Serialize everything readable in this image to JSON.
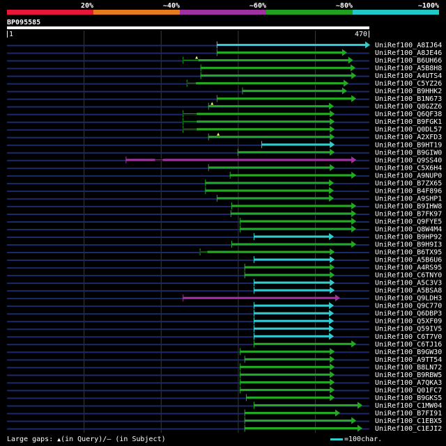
{
  "identity_scale": {
    "ticks": [
      "20%",
      "~40%",
      "~60%",
      "~80%",
      "~100%"
    ],
    "colors": [
      "#e8173a",
      "#e87a1e",
      "#a032a0",
      "#20a020",
      "#20c8c8"
    ]
  },
  "query": {
    "name": "BP095585",
    "start_label": "1",
    "end_label": "470",
    "length": 470
  },
  "hits": [
    {
      "name": "UniRef100_A8IJ64",
      "start": 272,
      "end": 471,
      "color": "#33cccc",
      "gaps": []
    },
    {
      "name": "UniRef100_A8JE46",
      "start": 272,
      "end": 441,
      "color": "#22aa22",
      "gaps": []
    },
    {
      "name": "UniRef100_B6UH66",
      "start": 228,
      "end": 449,
      "color": "#22aa22",
      "gaps": [
        [
          228,
          248,
          "line"
        ],
        [
          246,
          0,
          "tri"
        ]
      ]
    },
    {
      "name": "UniRef100_A5B8H8",
      "start": 251,
      "end": 452,
      "color": "#22aa22",
      "gaps": []
    },
    {
      "name": "UniRef100_A4UTS4",
      "start": 251,
      "end": 453,
      "color": "#22aa22",
      "gaps": []
    },
    {
      "name": "UniRef100_C5YZ26",
      "start": 233,
      "end": 443,
      "color": "#22aa22",
      "gaps": [
        [
          233,
          245,
          "line"
        ]
      ]
    },
    {
      "name": "UniRef100_B9HHK2",
      "start": 305,
      "end": 441,
      "color": "#22aa22",
      "gaps": []
    },
    {
      "name": "UniRef100_B1N673",
      "start": 272,
      "end": 453,
      "color": "#22aa22",
      "gaps": []
    },
    {
      "name": "UniRef100_Q8GZZ6",
      "start": 261,
      "end": 424,
      "color": "#22aa22",
      "gaps": [
        [
          266,
          0,
          "tri"
        ]
      ]
    },
    {
      "name": "UniRef100_Q6QF38",
      "start": 228,
      "end": 425,
      "color": "#22aa22",
      "gaps": [
        [
          228,
          246,
          "line"
        ]
      ]
    },
    {
      "name": "UniRef100_B9FGK1",
      "start": 228,
      "end": 425,
      "color": "#22aa22",
      "gaps": [
        [
          228,
          246,
          "line"
        ]
      ]
    },
    {
      "name": "UniRef100_Q0DL57",
      "start": 228,
      "end": 425,
      "color": "#22aa22",
      "gaps": [
        [
          228,
          246,
          "line"
        ]
      ]
    },
    {
      "name": "UniRef100_A2XFD3",
      "start": 261,
      "end": 425,
      "color": "#22aa22",
      "gaps": [
        [
          274,
          0,
          "tri"
        ]
      ]
    },
    {
      "name": "UniRef100_B9HT19",
      "start": 330,
      "end": 425,
      "color": "#33cccc",
      "gaps": []
    },
    {
      "name": "UniRef100_B9GIW0",
      "start": 299,
      "end": 425,
      "color": "#22aa22",
      "gaps": []
    },
    {
      "name": "UniRef100_Q9SS40",
      "start": 154,
      "end": 453,
      "color": "#a033a0",
      "gaps": [
        [
          192,
          202,
          "line"
        ]
      ]
    },
    {
      "name": "UniRef100_C5X6H4",
      "start": 261,
      "end": 425,
      "color": "#22aa22",
      "gaps": []
    },
    {
      "name": "UniRef100_A9NUP0",
      "start": 289,
      "end": 453,
      "color": "#22aa22",
      "gaps": []
    },
    {
      "name": "UniRef100_B7ZX65",
      "start": 257,
      "end": 424,
      "color": "#22aa22",
      "gaps": []
    },
    {
      "name": "UniRef100_B4F896",
      "start": 257,
      "end": 424,
      "color": "#22aa22",
      "gaps": []
    },
    {
      "name": "UniRef100_A9SHP1",
      "start": 272,
      "end": 424,
      "color": "#22aa22",
      "gaps": []
    },
    {
      "name": "UniRef100_B9IHW8",
      "start": 291,
      "end": 453,
      "color": "#22aa22",
      "gaps": []
    },
    {
      "name": "UniRef100_B7FK97",
      "start": 290,
      "end": 453,
      "color": "#22aa22",
      "gaps": []
    },
    {
      "name": "UniRef100_Q9FYE5",
      "start": 302,
      "end": 453,
      "color": "#22aa22",
      "gaps": []
    },
    {
      "name": "UniRef100_Q8W4M4",
      "start": 302,
      "end": 453,
      "color": "#22aa22",
      "gaps": []
    },
    {
      "name": "UniRef100_B9HP92",
      "start": 320,
      "end": 424,
      "color": "#33cccc",
      "gaps": []
    },
    {
      "name": "UniRef100_B9H9I3",
      "start": 291,
      "end": 453,
      "color": "#22aa22",
      "gaps": []
    },
    {
      "name": "UniRef100_B6TX95",
      "start": 250,
      "end": 425,
      "color": "#22aa22",
      "gaps": [
        [
          250,
          260,
          "line"
        ]
      ]
    },
    {
      "name": "UniRef100_A5B6U6",
      "start": 320,
      "end": 425,
      "color": "#33cccc",
      "gaps": []
    },
    {
      "name": "UniRef100_A4RS95",
      "start": 308,
      "end": 425,
      "color": "#22aa22",
      "gaps": []
    },
    {
      "name": "UniRef100_C6TNY0",
      "start": 308,
      "end": 425,
      "color": "#22aa22",
      "gaps": []
    },
    {
      "name": "UniRef100_A5C3V3",
      "start": 320,
      "end": 425,
      "color": "#33cccc",
      "gaps": []
    },
    {
      "name": "UniRef100_A5BSA8",
      "start": 320,
      "end": 425,
      "color": "#33cccc",
      "gaps": []
    },
    {
      "name": "UniRef100_Q9LDH3",
      "start": 228,
      "end": 432,
      "color": "#a033a0",
      "gaps": []
    },
    {
      "name": "UniRef100_Q9C770",
      "start": 320,
      "end": 424,
      "color": "#33cccc",
      "gaps": []
    },
    {
      "name": "UniRef100_Q6DBP3",
      "start": 320,
      "end": 424,
      "color": "#33cccc",
      "gaps": []
    },
    {
      "name": "UniRef100_Q5XF09",
      "start": 320,
      "end": 424,
      "color": "#33cccc",
      "gaps": []
    },
    {
      "name": "UniRef100_Q59IV5",
      "start": 320,
      "end": 424,
      "color": "#33cccc",
      "gaps": []
    },
    {
      "name": "UniRef100_C6T7V0",
      "start": 320,
      "end": 424,
      "color": "#33cccc",
      "gaps": []
    },
    {
      "name": "UniRef100_C6TJ16",
      "start": 320,
      "end": 453,
      "color": "#22aa22",
      "gaps": []
    },
    {
      "name": "UniRef100_B9GW30",
      "start": 302,
      "end": 425,
      "color": "#22aa22",
      "gaps": []
    },
    {
      "name": "UniRef100_A9TT54",
      "start": 308,
      "end": 425,
      "color": "#22aa22",
      "gaps": []
    },
    {
      "name": "UniRef100_B8LN72",
      "start": 302,
      "end": 425,
      "color": "#22aa22",
      "gaps": []
    },
    {
      "name": "UniRef100_B9RBW5",
      "start": 302,
      "end": 425,
      "color": "#22aa22",
      "gaps": []
    },
    {
      "name": "UniRef100_A7QKA3",
      "start": 302,
      "end": 425,
      "color": "#22aa22",
      "gaps": []
    },
    {
      "name": "UniRef100_Q01FC7",
      "start": 302,
      "end": 425,
      "color": "#22aa22",
      "gaps": []
    },
    {
      "name": "UniRef100_B9GKS5",
      "start": 310,
      "end": 425,
      "color": "#22aa22",
      "gaps": []
    },
    {
      "name": "UniRef100_C1MW04",
      "start": 320,
      "end": 461,
      "color": "#22aa22",
      "gaps": []
    },
    {
      "name": "UniRef100_B7FI91",
      "start": 308,
      "end": 432,
      "color": "#22aa22",
      "gaps": []
    },
    {
      "name": "UniRef100_C1EBX5",
      "start": 308,
      "end": 453,
      "color": "#22aa22",
      "gaps": []
    },
    {
      "name": "UniRef100_C1EJI2",
      "start": 308,
      "end": 461,
      "color": "#22aa22",
      "gaps": []
    }
  ],
  "footer": {
    "gaps_label": "Large gaps: ",
    "query_marker": "▲",
    "query_text": "(in Query)/",
    "subject_marker": "–",
    "subject_text": " (in Subject)",
    "key_label": "=100char."
  }
}
